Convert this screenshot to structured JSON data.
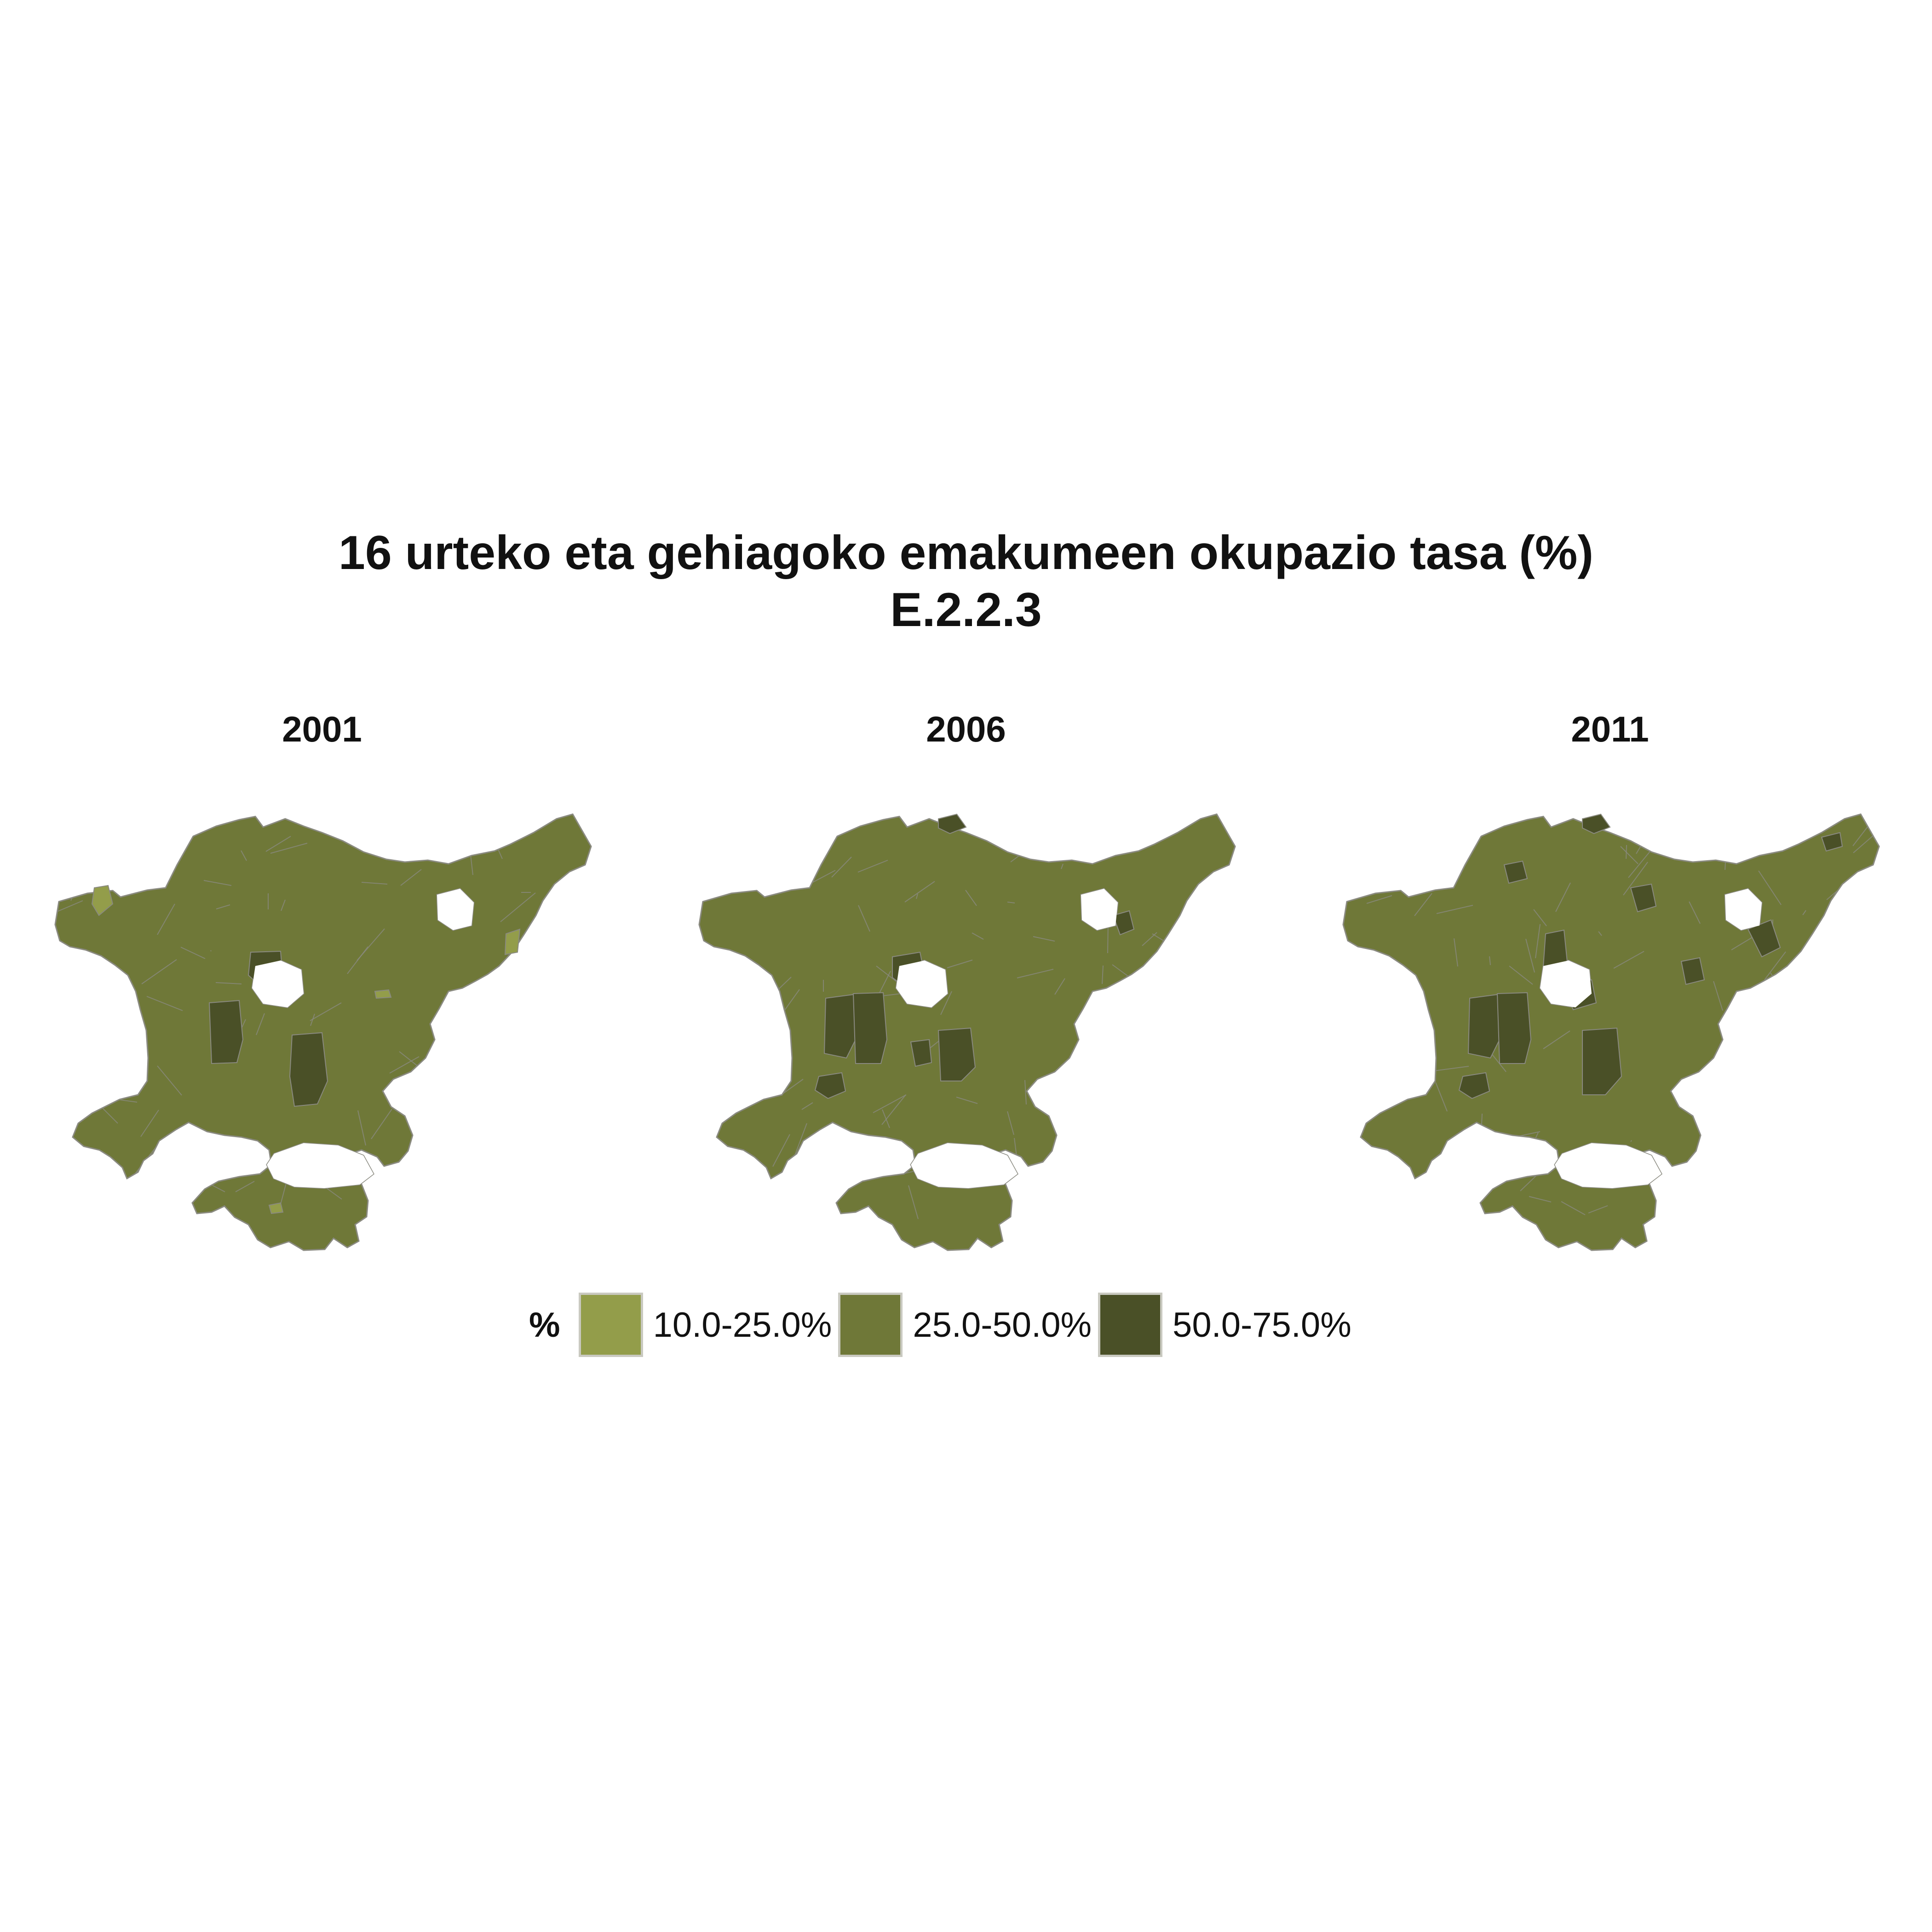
{
  "title": {
    "line1": "16 urteko eta gehiagoko emakumeen okupazio tasa (%)",
    "line2": "E.2.2.3"
  },
  "colors": {
    "low": "#939d4a",
    "mid": "#6f7838",
    "high": "#4a5027",
    "border": "#8a8a80"
  },
  "chart_data": {
    "type": "choropleth-map",
    "panels": [
      {
        "year": "2001",
        "dark_regions": 3,
        "light_regions": 4
      },
      {
        "year": "2006",
        "dark_regions": 8,
        "light_regions": 0
      },
      {
        "year": "2011",
        "dark_regions": 12,
        "light_regions": 0
      }
    ],
    "legend": {
      "title": "%",
      "items": [
        {
          "label": "10.0-25.0%",
          "color": "#939d4a"
        },
        {
          "label": "25.0-50.0%",
          "color": "#6f7838"
        },
        {
          "label": "50.0-75.0%",
          "color": "#4a5027"
        }
      ]
    }
  }
}
